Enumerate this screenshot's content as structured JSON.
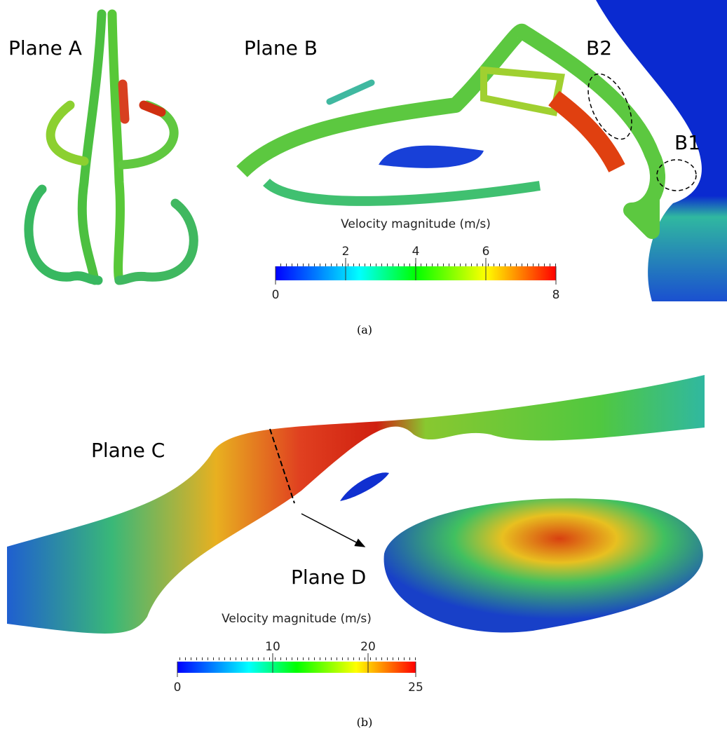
{
  "figure": {
    "panels": [
      {
        "caption": "(a)",
        "labels": [
          "Plane A",
          "Plane B",
          "B2",
          "B1"
        ],
        "colorbar": {
          "title": "Velocity magnitude (m/s)",
          "lim": [
            0,
            8
          ],
          "ticks": [
            2,
            4,
            6
          ]
        }
      },
      {
        "caption": "(b)",
        "labels": [
          "Plane C",
          "Plane D"
        ],
        "colorbar": {
          "title": "Velocity magnitude (m/s)",
          "lim": [
            0,
            25
          ],
          "ticks": [
            10,
            20
          ]
        }
      }
    ]
  }
}
